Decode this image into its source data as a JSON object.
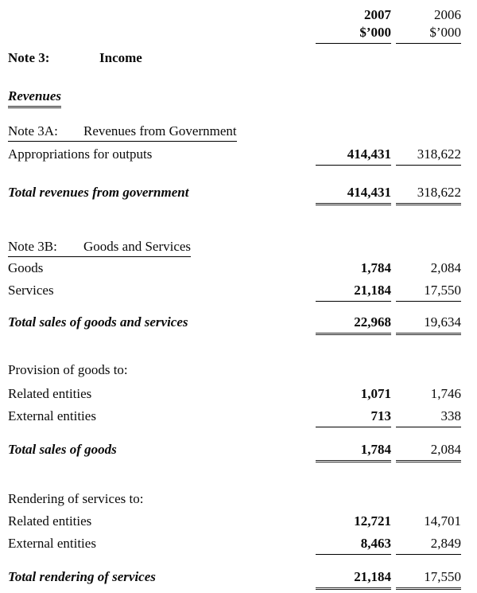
{
  "header": {
    "col_current": {
      "year": "2007",
      "unit": "$’000"
    },
    "col_prior": {
      "year": "2006",
      "unit": "$’000"
    }
  },
  "note": {
    "label": "Note 3:",
    "title": "Income"
  },
  "revenues_heading": "Revenues",
  "note3a": {
    "label": "Note 3A:",
    "title": "Revenues from Government",
    "rows": [
      {
        "label": "Appropriations for outputs",
        "v2007": "414,431",
        "v2006": "318,622"
      }
    ],
    "total": {
      "label": "Total revenues from government",
      "v2007": "414,431",
      "v2006": "318,622"
    }
  },
  "note3b": {
    "label": "Note 3B:",
    "title": "Goods and Services",
    "rows": [
      {
        "label": "Goods",
        "v2007": "1,784",
        "v2006": "2,084"
      },
      {
        "label": "Services",
        "v2007": "21,184",
        "v2006": "17,550"
      }
    ],
    "total": {
      "label": "Total sales of goods and services",
      "v2007": "22,968",
      "v2006": "19,634"
    },
    "provision_of_goods": {
      "heading": "Provision of goods to:",
      "rows": [
        {
          "label": "Related entities",
          "v2007": "1,071",
          "v2006": "1,746"
        },
        {
          "label": "External entities",
          "v2007": "713",
          "v2006": "338"
        }
      ],
      "total": {
        "label": "Total sales of goods",
        "v2007": "1,784",
        "v2006": "2,084"
      }
    },
    "rendering_of_services": {
      "heading": "Rendering of services to:",
      "rows": [
        {
          "label": "Related entities",
          "v2007": "12,721",
          "v2006": "14,701"
        },
        {
          "label": "External entities",
          "v2007": "8,463",
          "v2006": "2,849"
        }
      ],
      "total": {
        "label": "Total rendering of services",
        "v2007": "21,184",
        "v2006": "17,550"
      }
    }
  }
}
